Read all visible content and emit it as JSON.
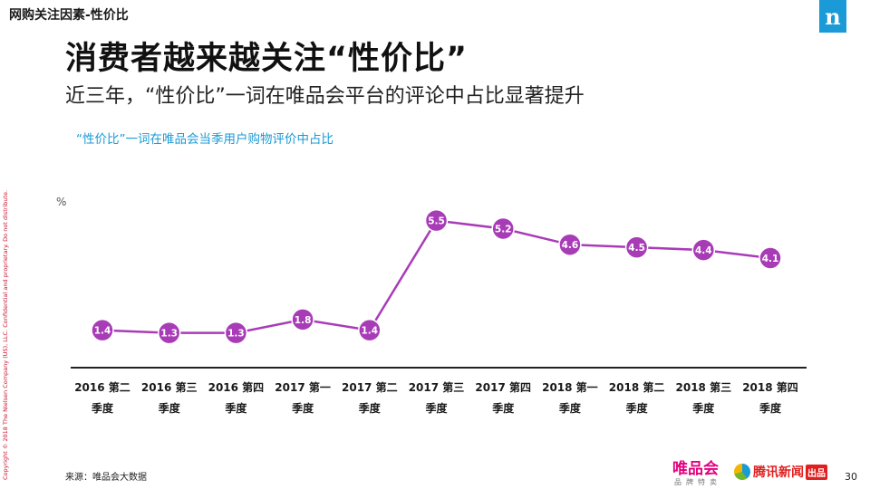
{
  "header": {
    "section_label": "网购关注因素-性价比",
    "brand_logo": "n"
  },
  "headline": "消费者越来越关注“性价比”",
  "subheadline": "近三年，“性价比”一词在唯品会平台的评论中占比显著提升",
  "copyright": "Copyright © 2018 The Nielsen Company (US), LLC. Confidential and proprietary. Do not distribute.",
  "colors": {
    "series": "#a83cb7",
    "accent_blue": "#1a9ad6",
    "axis": "#222222"
  },
  "chart_data": {
    "type": "line",
    "title": "“性价比”一词在唯品会当季用户购物评价中占比",
    "ylabel": "%",
    "xlabel": "",
    "categories": [
      [
        "2016 第二",
        "季度"
      ],
      [
        "2016 第三",
        "季度"
      ],
      [
        "2016 第四",
        "季度"
      ],
      [
        "2017 第一",
        "季度"
      ],
      [
        "2017 第二",
        "季度"
      ],
      [
        "2017 第三",
        "季度"
      ],
      [
        "2017 第四",
        "季度"
      ],
      [
        "2018 第一",
        "季度"
      ],
      [
        "2018 第二",
        "季度"
      ],
      [
        "2018 第三",
        "季度"
      ],
      [
        "2018 第四",
        "季度"
      ]
    ],
    "values": [
      1.4,
      1.3,
      1.3,
      1.8,
      1.4,
      5.5,
      5.2,
      4.6,
      4.5,
      4.4,
      4.1
    ],
    "data_labels": [
      "1.4",
      "1.3",
      "1.3",
      "1.8",
      "1.4",
      "5.5",
      "5.2",
      "4.6",
      "4.5",
      "4.4",
      "4.1"
    ],
    "ylim": [
      0,
      6.3
    ],
    "grid": false,
    "legend": "none"
  },
  "footer": {
    "source": "来源：唯品会大数据",
    "vip_logo_main": "唯品会",
    "vip_logo_sub": "品牌特卖",
    "tencent_logo": "腾讯新闻",
    "tencent_badge": "出品",
    "page_number": "30"
  }
}
